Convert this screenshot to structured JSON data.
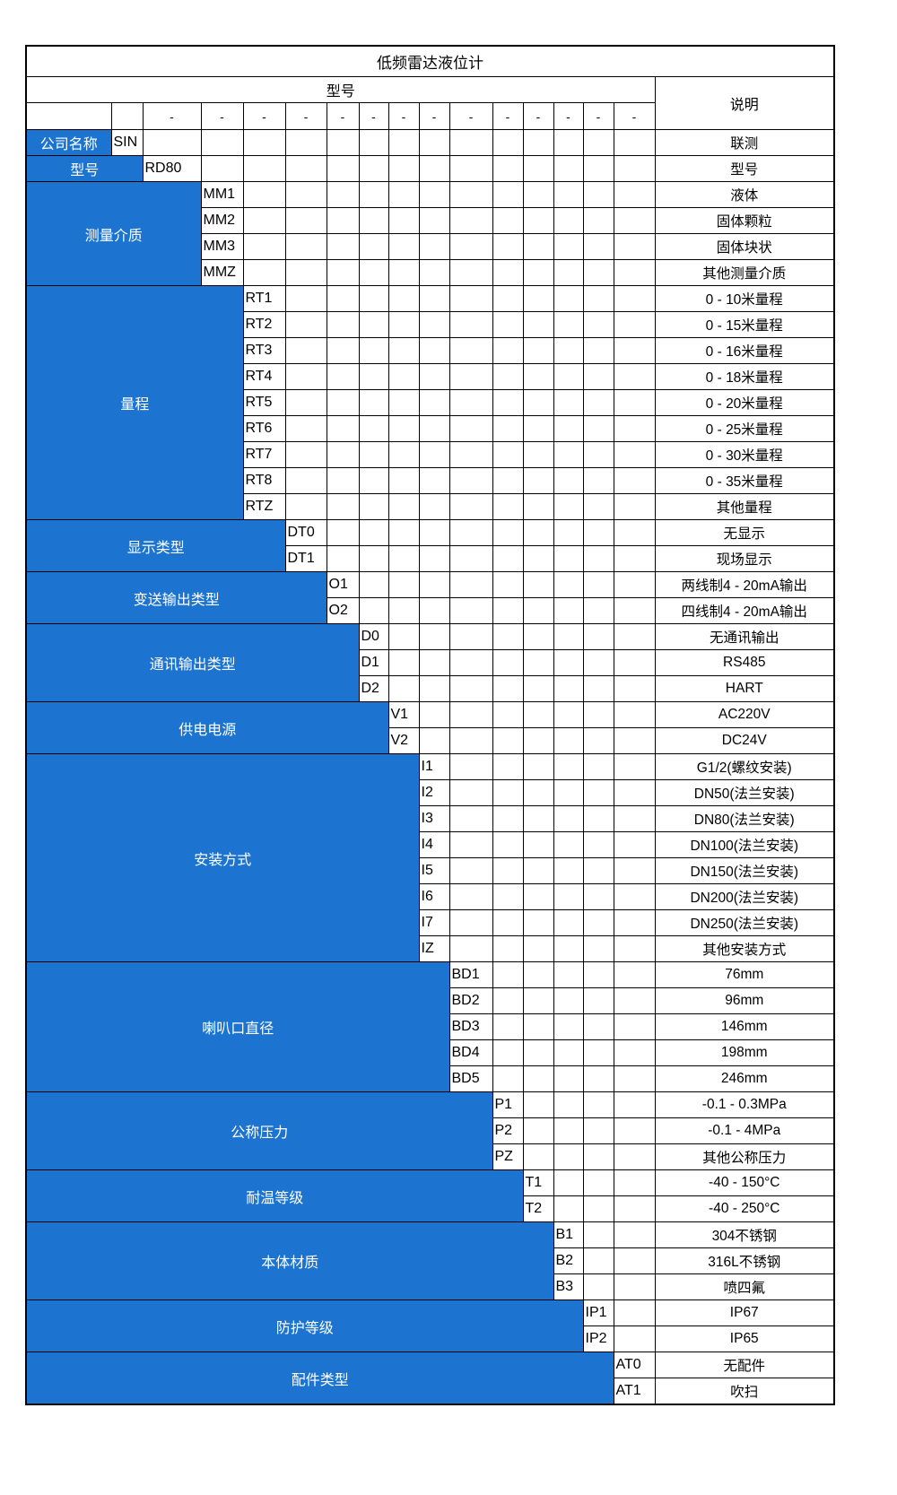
{
  "table": {
    "title": "低频雷达液位计",
    "header": {
      "model_label": "型号",
      "desc_label": "说明"
    },
    "dash": "-",
    "dash_start_col": 3,
    "colors": {
      "accent_blue": "#1c74d0",
      "border_color": "#000000",
      "text_on_blue": "#ffffff",
      "background": "#ffffff"
    },
    "categories": [
      {
        "key": "company-name",
        "label": "公司名称",
        "col": 2,
        "options": [
          {
            "code": "SIN",
            "desc": "联测"
          }
        ]
      },
      {
        "key": "model",
        "label": "型号",
        "col": 3,
        "options": [
          {
            "code": "RD80",
            "desc": "型号"
          }
        ]
      },
      {
        "key": "measuring-medium",
        "label": "测量介质",
        "col": 4,
        "options": [
          {
            "code": "MM1",
            "desc": "液体"
          },
          {
            "code": "MM2",
            "desc": "固体颗粒"
          },
          {
            "code": "MM3",
            "desc": "固体块状"
          },
          {
            "code": "MMZ",
            "desc": "其他测量介质"
          }
        ]
      },
      {
        "key": "range",
        "label": "量程",
        "col": 5,
        "options": [
          {
            "code": "RT1",
            "desc": "0 - 10米量程"
          },
          {
            "code": "RT2",
            "desc": "0 - 15米量程"
          },
          {
            "code": "RT3",
            "desc": "0 - 16米量程"
          },
          {
            "code": "RT4",
            "desc": "0 - 18米量程"
          },
          {
            "code": "RT5",
            "desc": "0 - 20米量程"
          },
          {
            "code": "RT6",
            "desc": "0 - 25米量程"
          },
          {
            "code": "RT7",
            "desc": "0 - 30米量程"
          },
          {
            "code": "RT8",
            "desc": "0 - 35米量程"
          },
          {
            "code": "RTZ",
            "desc": "其他量程"
          }
        ]
      },
      {
        "key": "display-type",
        "label": "显示类型",
        "col": 6,
        "options": [
          {
            "code": "DT0",
            "desc": "无显示"
          },
          {
            "code": "DT1",
            "desc": "现场显示"
          }
        ]
      },
      {
        "key": "transmission-output-type",
        "label": "变送输出类型",
        "col": 7,
        "options": [
          {
            "code": "O1",
            "desc": "两线制4 - 20mA输出"
          },
          {
            "code": "O2",
            "desc": "四线制4 - 20mA输出"
          }
        ]
      },
      {
        "key": "communication-output-type",
        "label": "通讯输出类型",
        "col": 8,
        "options": [
          {
            "code": "D0",
            "desc": "无通讯输出"
          },
          {
            "code": "D1",
            "desc": "RS485"
          },
          {
            "code": "D2",
            "desc": "HART"
          }
        ]
      },
      {
        "key": "power-supply",
        "label": "供电电源",
        "col": 9,
        "options": [
          {
            "code": "V1",
            "desc": "AC220V"
          },
          {
            "code": "V2",
            "desc": "DC24V"
          }
        ]
      },
      {
        "key": "installation-method",
        "label": "安装方式",
        "col": 10,
        "options": [
          {
            "code": "I1",
            "desc": "G1/2(螺纹安装)"
          },
          {
            "code": "I2",
            "desc": "DN50(法兰安装)"
          },
          {
            "code": "I3",
            "desc": "DN80(法兰安装)"
          },
          {
            "code": "I4",
            "desc": "DN100(法兰安装)"
          },
          {
            "code": "I5",
            "desc": "DN150(法兰安装)"
          },
          {
            "code": "I6",
            "desc": "DN200(法兰安装)"
          },
          {
            "code": "I7",
            "desc": "DN250(法兰安装)"
          },
          {
            "code": "IZ",
            "desc": "其他安装方式"
          }
        ]
      },
      {
        "key": "horn-diameter",
        "label": "喇叭口直径",
        "col": 11,
        "options": [
          {
            "code": "BD1",
            "desc": "76mm"
          },
          {
            "code": "BD2",
            "desc": "96mm"
          },
          {
            "code": "BD3",
            "desc": "146mm"
          },
          {
            "code": "BD4",
            "desc": "198mm"
          },
          {
            "code": "BD5",
            "desc": "246mm"
          }
        ]
      },
      {
        "key": "nominal-pressure",
        "label": "公称压力",
        "col": 12,
        "options": [
          {
            "code": "P1",
            "desc": "-0.1 - 0.3MPa"
          },
          {
            "code": "P2",
            "desc": "-0.1 - 4MPa"
          },
          {
            "code": "PZ",
            "desc": "其他公称压力"
          }
        ]
      },
      {
        "key": "temperature-rating",
        "label": "耐温等级",
        "col": 13,
        "options": [
          {
            "code": "T1",
            "desc": "-40 - 150°C"
          },
          {
            "code": "T2",
            "desc": "-40 - 250°C"
          }
        ]
      },
      {
        "key": "body-material",
        "label": "本体材质",
        "col": 14,
        "options": [
          {
            "code": "B1",
            "desc": "304不锈钢"
          },
          {
            "code": "B2",
            "desc": "316L不锈钢"
          },
          {
            "code": "B3",
            "desc": "喷四氟"
          }
        ]
      },
      {
        "key": "protection-rating",
        "label": "防护等级",
        "col": 15,
        "options": [
          {
            "code": "IP1",
            "desc": "IP67"
          },
          {
            "code": "IP2",
            "desc": "IP65"
          }
        ]
      },
      {
        "key": "accessory-type",
        "label": "配件类型",
        "col": 16,
        "options": [
          {
            "code": "AT0",
            "desc": "无配件"
          },
          {
            "code": "AT1",
            "desc": "吹扫"
          }
        ]
      }
    ]
  }
}
